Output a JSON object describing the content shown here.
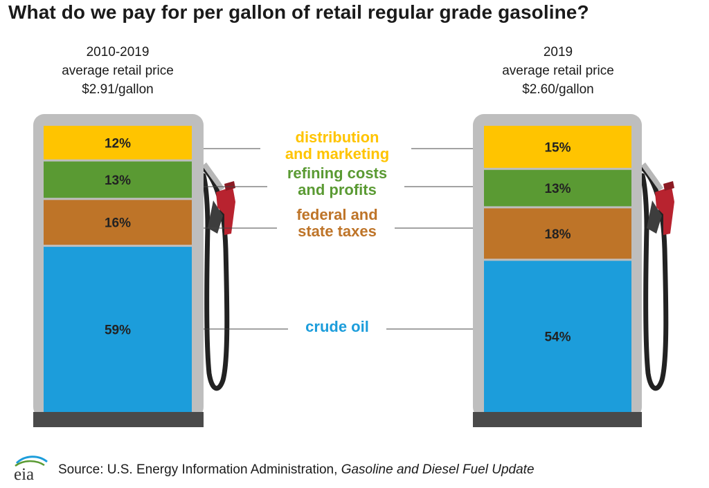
{
  "title": "What do we pay for per gallon of retail regular grade gasoline?",
  "chart_data": {
    "type": "bar",
    "stacked": true,
    "pumps": [
      {
        "period": "2010-2019",
        "subtitle": "average retail price",
        "price": "$2.91/gallon",
        "components": [
          {
            "key": "crude",
            "value": 59,
            "label": "59%"
          },
          {
            "key": "taxes",
            "value": 16,
            "label": "16%"
          },
          {
            "key": "refining",
            "value": 13,
            "label": "13%"
          },
          {
            "key": "distribution",
            "value": 12,
            "label": "12%"
          }
        ]
      },
      {
        "period": "2019",
        "subtitle": "average retail price",
        "price": "$2.60/gallon",
        "components": [
          {
            "key": "crude",
            "value": 54,
            "label": "54%"
          },
          {
            "key": "taxes",
            "value": 18,
            "label": "18%"
          },
          {
            "key": "refining",
            "value": 13,
            "label": "13%"
          },
          {
            "key": "distribution",
            "value": 15,
            "label": "15%"
          }
        ]
      }
    ],
    "categories": [
      {
        "key": "distribution",
        "lines": [
          "distribution",
          "and marketing"
        ],
        "color": "#FFC400"
      },
      {
        "key": "refining",
        "lines": [
          "refining costs",
          "and profits"
        ],
        "color": "#5A9A33"
      },
      {
        "key": "taxes",
        "lines": [
          "federal and",
          "state taxes"
        ],
        "color": "#BE7428"
      },
      {
        "key": "crude",
        "lines": [
          "crude oil"
        ],
        "color": "#1C9DDB"
      }
    ]
  },
  "source": {
    "prefix": "Source: U.S. Energy Information Administration, ",
    "publication": "Gasoline and Diesel Fuel Update"
  },
  "logo_text": "eia"
}
